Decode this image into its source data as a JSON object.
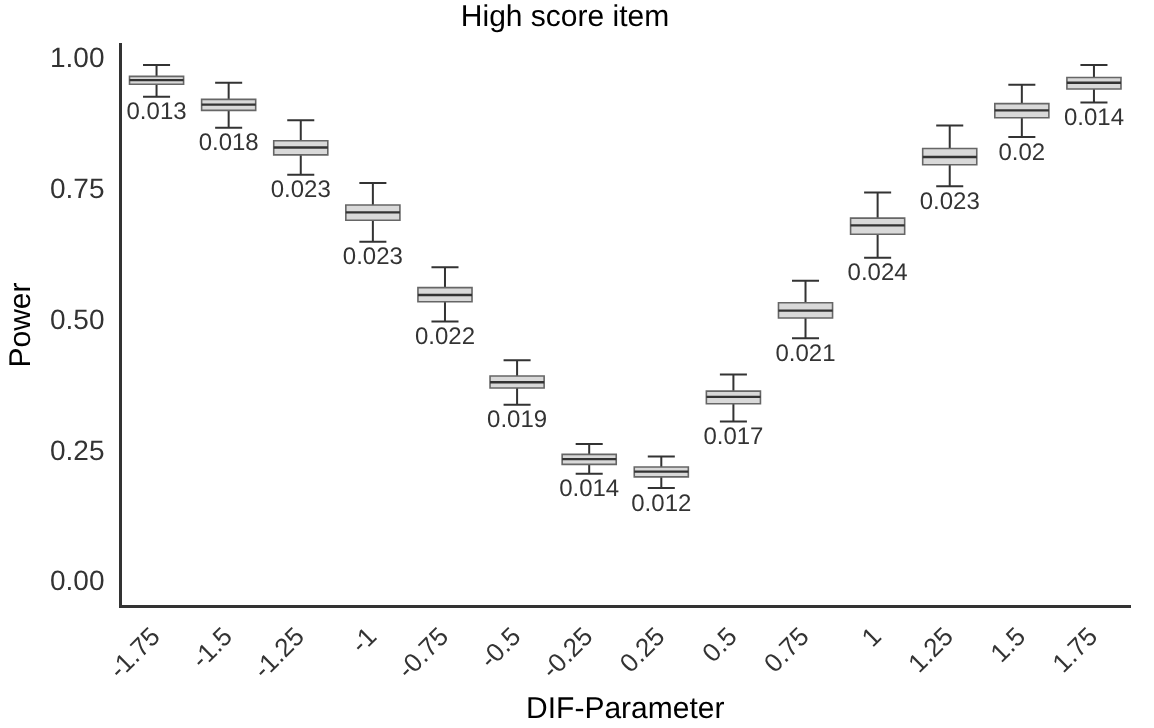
{
  "chart_data": {
    "type": "box",
    "title": "High score item",
    "xlabel": "DIF-Parameter",
    "ylabel": "Power",
    "categories": [
      "-1.75",
      "-1.5",
      "-1.25",
      "-1",
      "-0.75",
      "-0.5",
      "-0.25",
      "0.25",
      "0.5",
      "0.75",
      "1",
      "1.25",
      "1.5",
      "1.75"
    ],
    "boxes": [
      {
        "low": 0.929,
        "q1": 0.953,
        "median": 0.961,
        "q3": 0.968,
        "high": 0.99
      },
      {
        "low": 0.87,
        "q1": 0.903,
        "median": 0.914,
        "q3": 0.924,
        "high": 0.956
      },
      {
        "low": 0.78,
        "q1": 0.818,
        "median": 0.832,
        "q3": 0.845,
        "high": 0.884
      },
      {
        "low": 0.652,
        "q1": 0.693,
        "median": 0.708,
        "q3": 0.722,
        "high": 0.764
      },
      {
        "low": 0.499,
        "q1": 0.537,
        "median": 0.55,
        "q3": 0.564,
        "high": 0.603
      },
      {
        "low": 0.34,
        "q1": 0.372,
        "median": 0.383,
        "q3": 0.395,
        "high": 0.425
      },
      {
        "low": 0.208,
        "q1": 0.226,
        "median": 0.236,
        "q3": 0.245,
        "high": 0.265
      },
      {
        "low": 0.181,
        "q1": 0.202,
        "median": 0.212,
        "q3": 0.221,
        "high": 0.241
      },
      {
        "low": 0.308,
        "q1": 0.342,
        "median": 0.355,
        "q3": 0.366,
        "high": 0.398
      },
      {
        "low": 0.467,
        "q1": 0.506,
        "median": 0.52,
        "q3": 0.535,
        "high": 0.577
      },
      {
        "low": 0.621,
        "q1": 0.666,
        "median": 0.683,
        "q3": 0.697,
        "high": 0.746
      },
      {
        "low": 0.758,
        "q1": 0.799,
        "median": 0.814,
        "q3": 0.83,
        "high": 0.874
      },
      {
        "low": 0.852,
        "q1": 0.889,
        "median": 0.903,
        "q3": 0.916,
        "high": 0.952
      },
      {
        "low": 0.918,
        "q1": 0.944,
        "median": 0.956,
        "q3": 0.966,
        "high": 0.99
      }
    ],
    "value_labels": [
      "0.013",
      "0.018",
      "0.023",
      "0.023",
      "0.022",
      "0.019",
      "0.014",
      "0.012",
      "0.017",
      "0.021",
      "0.024",
      "0.023",
      "0.02",
      "0.014"
    ],
    "color": "#d9d9d9",
    "ylim": [
      -0.045,
      1.03
    ],
    "yticks": [
      {
        "value": 0,
        "label": "0.00"
      },
      {
        "value": 0.25,
        "label": "0.25"
      },
      {
        "value": 0.5,
        "label": "0.50"
      },
      {
        "value": 0.75,
        "label": "0.75"
      },
      {
        "value": 1,
        "label": "1.00"
      }
    ],
    "grid": false,
    "legend": false
  }
}
